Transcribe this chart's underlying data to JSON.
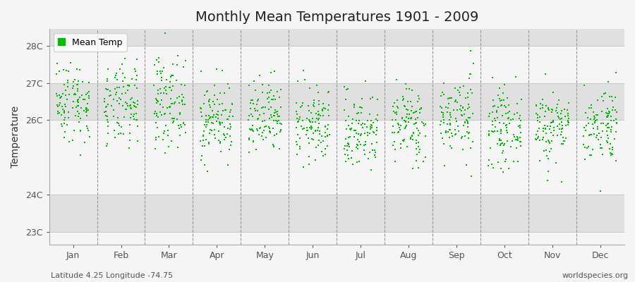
{
  "title": "Monthly Mean Temperatures 1901 - 2009",
  "ylabel": "Temperature",
  "xlabel_bottom": "Latitude 4.25 Longitude -74.75",
  "watermark": "worldspecies.org",
  "ytick_labels": [
    "23C",
    "24C",
    "26C",
    "27C",
    "28C"
  ],
  "ytick_values": [
    23,
    24,
    26,
    27,
    28
  ],
  "ylim": [
    22.65,
    28.45
  ],
  "months": [
    "Jan",
    "Feb",
    "Mar",
    "Apr",
    "May",
    "Jun",
    "Jul",
    "Aug",
    "Sep",
    "Oct",
    "Nov",
    "Dec"
  ],
  "n_years": 109,
  "dot_color": "#00bb00",
  "dot_size": 3.5,
  "background_color": "#f5f5f5",
  "plot_bg_color": "#f5f5f5",
  "stripe_color_odd": "#ebebeb",
  "stripe_color_even": "#f5f5f5",
  "hband_color": "#e0e0e0",
  "title_fontsize": 14,
  "axis_fontsize": 10,
  "tick_fontsize": 9,
  "legend_fontsize": 9,
  "monthly_means": [
    26.5,
    26.35,
    26.5,
    26.0,
    26.0,
    25.85,
    25.7,
    25.9,
    26.1,
    25.8,
    25.85,
    25.9
  ],
  "monthly_stds": [
    0.55,
    0.55,
    0.6,
    0.52,
    0.52,
    0.5,
    0.52,
    0.52,
    0.55,
    0.5,
    0.5,
    0.52
  ],
  "seed": 42
}
